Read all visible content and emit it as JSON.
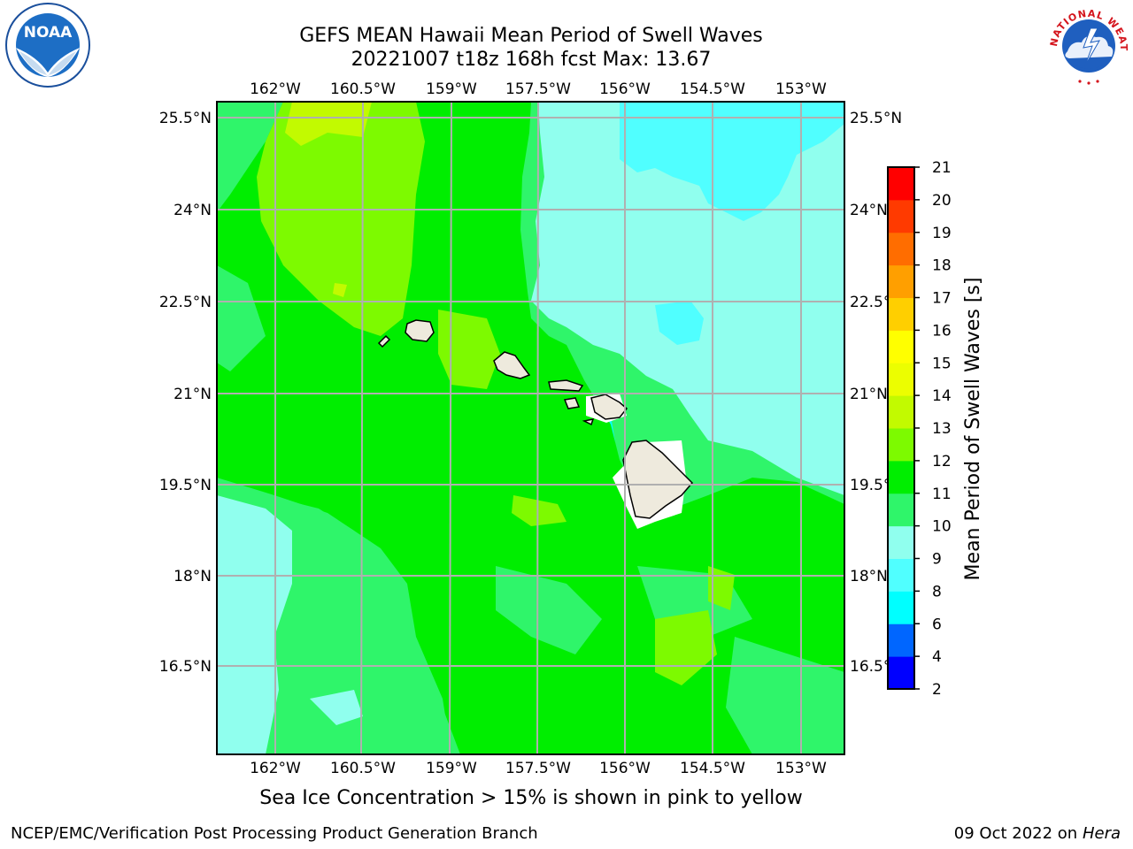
{
  "title_line1": "GEFS MEAN Hawaii Mean Period of Swell Waves",
  "title_line2": "20221007 t18z 168h fcst   Max: 13.67",
  "footer_note": "Sea Ice Concentration > 15% is shown in pink to yellow",
  "credit_left": "NCEP/EMC/Verification Post Processing Product Generation Branch",
  "credit_date": "09 Oct 2022 on",
  "credit_machine": "Hera",
  "logos": {
    "left": "NOAA",
    "right": "NATIONAL WEATHER SERVICE"
  },
  "map": {
    "lon_ticks": [
      "162°W",
      "160.5°W",
      "159°W",
      "157.5°W",
      "156°W",
      "154.5°W",
      "153°W"
    ],
    "lat_ticks": [
      "25.5°N",
      "24°N",
      "22.5°N",
      "21°N",
      "19.5°N",
      "18°N",
      "16.5°N"
    ],
    "land_color": "#eeeadd",
    "grid": true
  },
  "colorbar": {
    "label": "Mean Period of Swell Waves [s]",
    "ticks": [
      "2",
      "4",
      "6",
      "8",
      "9",
      "10",
      "11",
      "12",
      "13",
      "14",
      "15",
      "16",
      "17",
      "18",
      "19",
      "20",
      "21"
    ],
    "colors": [
      "#0000ff",
      "#0066ff",
      "#00ffff",
      "#50ffff",
      "#90ffee",
      "#2ff56a",
      "#00ee00",
      "#7dfa00",
      "#c2fa00",
      "#ecfe00",
      "#ffff00",
      "#ffcf00",
      "#ff9f00",
      "#ff6d00",
      "#ff3a00",
      "#ff0000"
    ]
  }
}
